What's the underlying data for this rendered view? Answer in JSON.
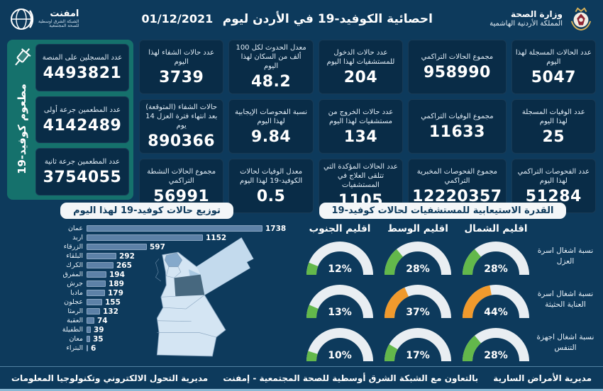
{
  "header": {
    "title": "احصائية الكوفيد-19 في الأردن ليوم",
    "date": "01/12/2021",
    "ministry": {
      "line1": "وزارة الصحة",
      "line2": "المملكة الأردنية الهاشمية"
    },
    "emphnet": {
      "name": "امفنت",
      "sub1": "الشبكة الشرق اوسطية",
      "sub2": "للصحة المجتمعية"
    }
  },
  "stats_columns": [
    [
      {
        "label": "عدد الحالات المسجلة لهذا اليوم",
        "value": "5047"
      },
      {
        "label": "عدد الوفيات المسجلة لهذا اليوم",
        "value": "25"
      },
      {
        "label": "عدد الفحوصات التراكمي لهذا اليوم",
        "value": "51284"
      }
    ],
    [
      {
        "label": "مجموع الحالات التراكمي",
        "value": "958990"
      },
      {
        "label": "مجموع الوفيات التراكمي",
        "value": "11633"
      },
      {
        "label": "مجموع الفحوصات المخبرية التراكمي",
        "value": "12220357"
      }
    ],
    [
      {
        "label": "عدد حالات الدخول للمستشفيات لهذا اليوم",
        "value": "204"
      },
      {
        "label": "عدد حالات الخروج من مستشفيات لهذا اليوم",
        "value": "134"
      },
      {
        "label": "عدد الحالات المؤكدة التي تتلقى العلاج في المستشفيات",
        "value": "1105"
      }
    ],
    [
      {
        "label": "معدل الحدوث لكل 100 ألف من السكان لهذا اليوم",
        "value": "48.2"
      },
      {
        "label": "نسبة الفحوصات الإيجابية لهذا اليوم",
        "value": "9.84"
      },
      {
        "label": "معدل الوفيات لحالات الكوفيد-19 لهذا اليوم",
        "value": "0.5"
      }
    ],
    [
      {
        "label": "عدد حالات الشفاء لهذا اليوم",
        "value": "3739"
      },
      {
        "label": "حالات الشفاء (المتوقعة) بعد انتهاء فترة العزل 14 يوم",
        "value": "890366"
      },
      {
        "label": "مجموع الحالات النشطة التراكمي",
        "value": "56991"
      }
    ]
  ],
  "vaccine_panel": {
    "vertical_label": "مطعوم كوفيد-19",
    "cards": [
      {
        "label": "عدد المسجلين على المنصة",
        "value": "4493821"
      },
      {
        "label": "عدد المطعمين جرعة أولى",
        "value": "4142489"
      },
      {
        "label": "عدد المطعمين جرعة ثانية",
        "value": "3754055"
      }
    ]
  },
  "chart_data": [
    {
      "type": "bar",
      "orientation": "horizontal",
      "title": "توزيع حالات كوفيد-19 لهذا اليوم",
      "categories": [
        "عمان",
        "اربد",
        "الزرقاء",
        "البلقاء",
        "الكرك",
        "المفرق",
        "جرش",
        "مادبا",
        "عجلون",
        "الرمثا",
        "العقبة",
        "الطفيلة",
        "معان",
        "البتراء"
      ],
      "values": [
        1738,
        1152,
        597,
        292,
        265,
        194,
        189,
        179,
        155,
        132,
        74,
        39,
        35,
        6
      ],
      "xlim": [
        0,
        1800
      ],
      "value_labels": true,
      "grid": false
    },
    {
      "type": "gauge-grid",
      "title": "القدرة الاستيعابية للمستشفيات لحالات كوفيد-19",
      "columns": [
        "اقليم الشمال",
        "اقليم الوسط",
        "اقليم الجنوب"
      ],
      "unit": "%",
      "rows": [
        {
          "label": "نسبة اشغال اسرة العزل",
          "values": [
            28,
            28,
            12
          ],
          "colors": [
            "green",
            "green",
            "green"
          ]
        },
        {
          "label": "نسبة اشغال اسرة العناية الحثيثة",
          "values": [
            44,
            37,
            13
          ],
          "colors": [
            "orange",
            "orange",
            "green"
          ]
        },
        {
          "label": "نسبة اشغال اجهزة التنفس",
          "values": [
            28,
            17,
            10
          ],
          "colors": [
            "green",
            "green",
            "green"
          ]
        }
      ]
    }
  ],
  "footer": {
    "right": "مديرية الأمراض السارية",
    "center": "بالتعاون مع الشبكة الشرق أوسطية للصحة المجتمعية - إمفنت",
    "left": "مديرية التحول الالكتروني وتكنولوجيا المعلومات"
  },
  "colors": {
    "page_bg": "#0d3a5c",
    "card_bg": "#092c47",
    "panel_green": "#15716c",
    "bar_fill": "#5d81a7",
    "gauge_track": "#e9eef2",
    "gauge_green": "#63b84b",
    "gauge_orange": "#f09a2d",
    "title_box_bg": "#f3f6f8",
    "title_box_text": "#0d3a5c",
    "map_base": "#d4e5f3",
    "map_mafraq": "#c3daed",
    "map_zarqa": "#aac9e2",
    "map_irbid": "#85a9cb",
    "map_amman": "#47687f",
    "map_stroke": "#7e9cb8"
  }
}
